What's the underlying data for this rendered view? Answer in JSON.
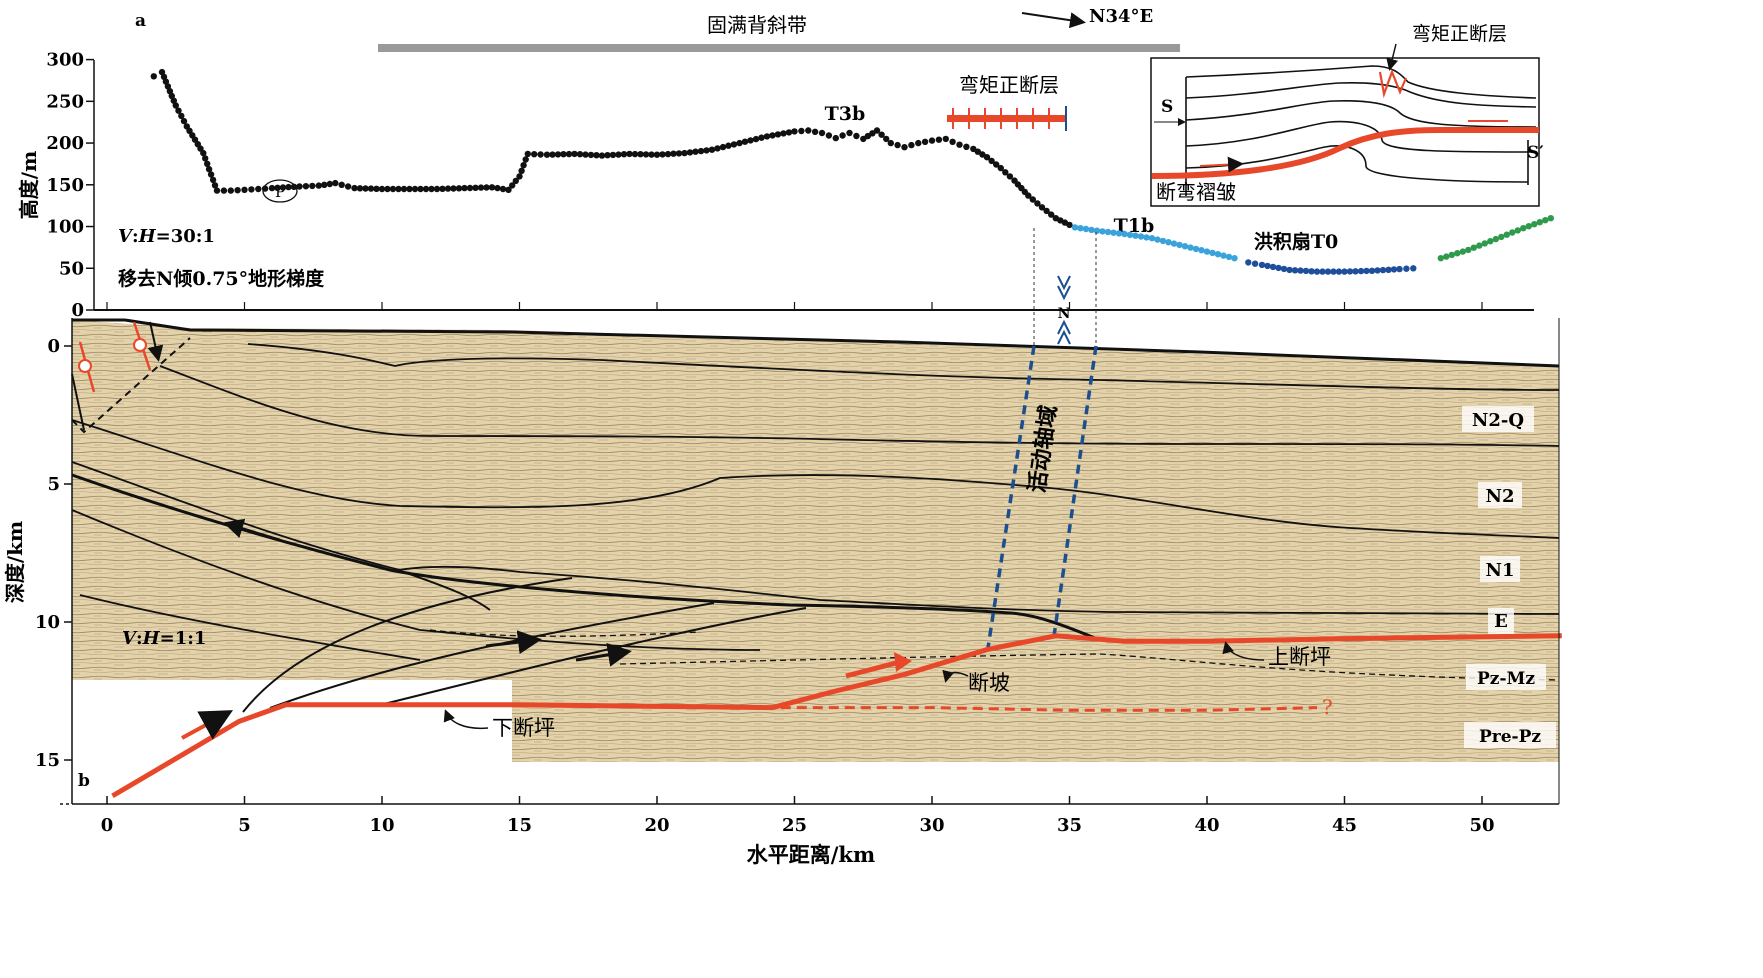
{
  "panel_a": {
    "label": "a",
    "ylabel": "高度/m",
    "yticks": [
      "0",
      "50",
      "100",
      "150",
      "200",
      "250",
      "300"
    ],
    "anticline_label": "固满背斜带",
    "direction": "N34°E",
    "ratio_var_v": "V",
    "ratio_var_h": "H",
    "ratio_value": "=30:1",
    "note": "移去N倾0.75°地形梯度",
    "point_marker": "P",
    "terrace_T3b": "T3b",
    "terrace_T1b": "T1b",
    "fan_label": "洪积扇T0",
    "normal_fault_label": "弯矩正断层",
    "fold_axis_marker": "N",
    "inset": {
      "normal_fault_label": "弯矩正断层",
      "s_left": "S",
      "s_right": "S′",
      "fold_label": "断弯褶皱"
    }
  },
  "panel_b": {
    "label": "b",
    "ylabel": "深度/km",
    "yticks": [
      "0",
      "5",
      "10",
      "15"
    ],
    "xlabel": "水平距离/km",
    "xticks": [
      "0",
      "5",
      "10",
      "15",
      "20",
      "25",
      "30",
      "35",
      "40",
      "45",
      "50"
    ],
    "ratio_var_v": "V",
    "ratio_var_h": "H",
    "ratio_value": "=1:1",
    "active_axis_label": "活动轴域",
    "ramp_label": "断坡",
    "upper_flat_label": "上断坪",
    "lower_flat_label": "下断坪",
    "question_mark": "?",
    "layers": [
      "N2-Q",
      "N2",
      "N1",
      "E",
      "Pz-Mz",
      "Pre-Pz"
    ]
  },
  "colors": {
    "fault_red": "#e8482a",
    "seismic_bg": "#e3d2aa",
    "axis_blue": "#1d4f8f",
    "t1b_blue": "#3ba3dc",
    "fan_blue": "#1f4e9a",
    "fan_green": "#2f9a4c",
    "anticline_bar": "#9a9a9a"
  },
  "chart_data": [
    {
      "type": "scatter",
      "title": "",
      "xlabel": "水平距离/km",
      "ylabel": "高度/m",
      "xlim": [
        -1,
        53
      ],
      "ylim": [
        0,
        300
      ],
      "series": [
        {
          "name": "",
          "color": "#111111",
          "points": [
            [
              1.7,
              280
            ],
            [
              2.0,
              285
            ],
            [
              2.5,
              245
            ],
            [
              2.9,
              220
            ],
            [
              3.5,
              188
            ],
            [
              4,
              143
            ],
            [
              4.5,
              143
            ],
            [
              5,
              144
            ],
            [
              5.5,
              145
            ],
            [
              6,
              146
            ],
            [
              7,
              148
            ],
            [
              7.7,
              149
            ],
            [
              8.3,
              152
            ],
            [
              9,
              146
            ],
            [
              10,
              145
            ],
            [
              11,
              145
            ],
            [
              12,
              145
            ],
            [
              13,
              146
            ],
            [
              14,
              147
            ],
            [
              14.6,
              144
            ],
            [
              15,
              160
            ],
            [
              15.3,
              187
            ],
            [
              16,
              186
            ],
            [
              17,
              187
            ],
            [
              18,
              185
            ],
            [
              19,
              187
            ],
            [
              20,
              186
            ],
            [
              21,
              188
            ],
            [
              22,
              192
            ],
            [
              23,
              200
            ],
            [
              24,
              208
            ],
            [
              25,
              214
            ],
            [
              25.5,
              215
            ],
            [
              26,
              212
            ],
            [
              26.5,
              206
            ],
            [
              27,
              212
            ],
            [
              27.5,
              205
            ],
            [
              28,
              215
            ],
            [
              28.5,
              200
            ],
            [
              29,
              195
            ],
            [
              29.5,
              200
            ],
            [
              30,
              203
            ],
            [
              30.5,
              205
            ],
            [
              31,
              198
            ],
            [
              31.5,
              193
            ],
            [
              32,
              183
            ],
            [
              32.5,
              170
            ],
            [
              33,
              155
            ],
            [
              33.5,
              137
            ],
            [
              34,
              123
            ],
            [
              34.5,
              110
            ],
            [
              35,
              102
            ]
          ]
        },
        {
          "name": "T1b",
          "color": "#3ba3dc",
          "points": [
            [
              35.2,
              99
            ],
            [
              36,
              95
            ],
            [
              37,
              91
            ],
            [
              38,
              86
            ],
            [
              39,
              78
            ],
            [
              40,
              70
            ],
            [
              41,
              62
            ]
          ]
        },
        {
          "name": "洪积扇T0",
          "color": "#1f4e9a",
          "points": [
            [
              41.5,
              57
            ],
            [
              42,
              54
            ],
            [
              43,
              48
            ],
            [
              44,
              46
            ],
            [
              45,
              46
            ],
            [
              46,
              47
            ],
            [
              47,
              49
            ],
            [
              47.5,
              50
            ]
          ]
        },
        {
          "name": "",
          "color": "#2f9a4c",
          "points": [
            [
              48.5,
              62
            ],
            [
              49.5,
              72
            ],
            [
              50.5,
              85
            ],
            [
              51.5,
              98
            ],
            [
              52.5,
              110
            ]
          ]
        }
      ]
    },
    {
      "type": "line",
      "title": "",
      "xlabel": "水平距离/km",
      "ylabel": "深度/km",
      "xlim": [
        -1,
        53
      ],
      "ylim": [
        16,
        -1
      ],
      "series": [
        {
          "name": "fault",
          "color": "#e8482a",
          "points": [
            [
              0.2,
              16.3
            ],
            [
              4.8,
              13.6
            ],
            [
              6.5,
              13.0
            ],
            [
              15,
              13.0
            ],
            [
              24.2,
              13.1
            ],
            [
              26.5,
              12.5
            ],
            [
              29,
              11.9
            ],
            [
              32,
              11.0
            ],
            [
              34.5,
              10.5
            ],
            [
              37,
              10.7
            ],
            [
              40,
              10.7
            ],
            [
              45,
              10.6
            ],
            [
              52.9,
              10.5
            ]
          ]
        },
        {
          "name": "dashed-fault",
          "color": "#e8482a",
          "points": [
            [
              24.5,
              13.1
            ],
            [
              30,
              13.1
            ],
            [
              35,
              13.2
            ],
            [
              40,
              13.2
            ],
            [
              44,
              13.1
            ]
          ]
        }
      ]
    }
  ]
}
